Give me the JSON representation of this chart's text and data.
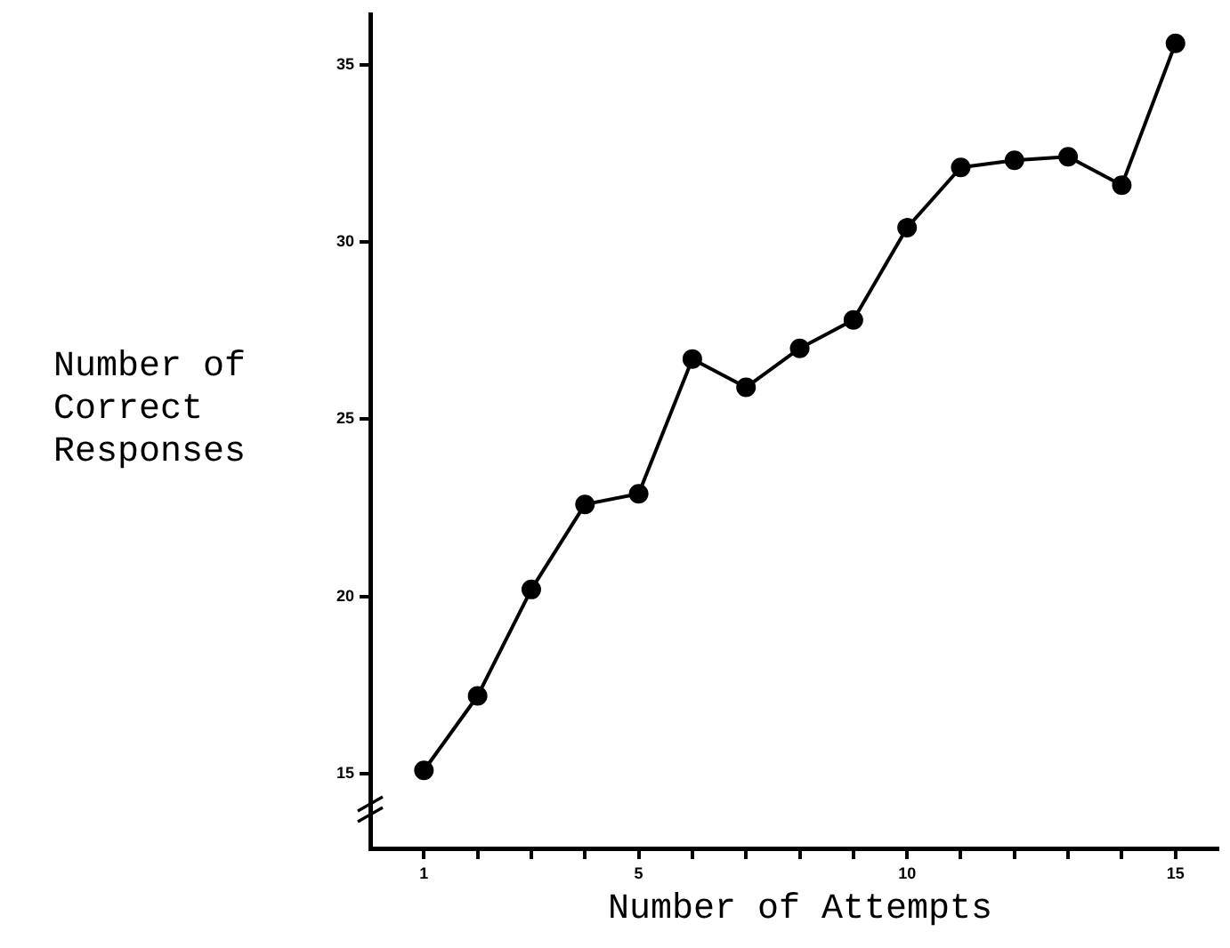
{
  "chart_data": {
    "type": "line",
    "xlabel": "Number of Attempts",
    "ylabel": "Number of Correct Responses",
    "x": [
      1,
      2,
      3,
      4,
      5,
      6,
      7,
      8,
      9,
      10,
      11,
      12,
      13,
      14,
      15
    ],
    "series": [
      {
        "color": "#000000",
        "values": [
          15.1,
          17.2,
          20.2,
          22.6,
          22.9,
          26.7,
          25.9,
          27.0,
          27.8,
          30.4,
          32.1,
          32.3,
          32.4,
          31.6,
          35.6
        ]
      }
    ],
    "xlim": [
      0,
      15.8
    ],
    "xticks": [
      1,
      {
        "value": 2,
        "label": null
      },
      {
        "value": 3,
        "label": null
      },
      {
        "value": 4,
        "label": null
      },
      5,
      {
        "value": 6,
        "label": null
      },
      {
        "value": 7,
        "label": null
      },
      {
        "value": 8,
        "label": null
      },
      {
        "value": 9,
        "label": null
      },
      10,
      {
        "value": 11,
        "label": null
      },
      {
        "value": 12,
        "label": null
      },
      {
        "value": 13,
        "label": null
      },
      {
        "value": 14,
        "label": null
      },
      15
    ],
    "ylim": [
      12.9,
      36.4
    ],
    "yticks": [
      15,
      20,
      25,
      30,
      35
    ],
    "grid": false,
    "legend": false,
    "marker": "circle",
    "line_style": "solid"
  }
}
